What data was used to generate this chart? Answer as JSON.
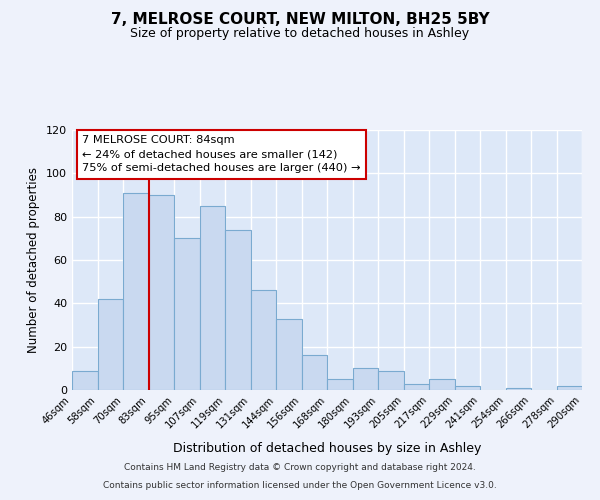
{
  "title": "7, MELROSE COURT, NEW MILTON, BH25 5BY",
  "subtitle": "Size of property relative to detached houses in Ashley",
  "xlabel": "Distribution of detached houses by size in Ashley",
  "ylabel": "Number of detached properties",
  "bin_labels": [
    "46sqm",
    "58sqm",
    "70sqm",
    "83sqm",
    "95sqm",
    "107sqm",
    "119sqm",
    "131sqm",
    "144sqm",
    "156sqm",
    "168sqm",
    "180sqm",
    "193sqm",
    "205sqm",
    "217sqm",
    "229sqm",
    "241sqm",
    "254sqm",
    "266sqm",
    "278sqm",
    "290sqm"
  ],
  "bar_values": [
    9,
    42,
    91,
    90,
    70,
    85,
    74,
    46,
    33,
    16,
    5,
    10,
    9,
    3,
    5,
    2,
    0,
    1,
    0,
    2
  ],
  "bar_color": "#c9d9f0",
  "bar_edge_color": "#7aaad0",
  "ylim": [
    0,
    120
  ],
  "yticks": [
    0,
    20,
    40,
    60,
    80,
    100,
    120
  ],
  "annotation_title": "7 MELROSE COURT: 84sqm",
  "annotation_line1": "← 24% of detached houses are smaller (142)",
  "annotation_line2": "75% of semi-detached houses are larger (440) →",
  "annotation_box_color": "#ffffff",
  "annotation_box_edge": "#cc0000",
  "property_line_x": 3,
  "property_line_color": "#cc0000",
  "footer1": "Contains HM Land Registry data © Crown copyright and database right 2024.",
  "footer2": "Contains public sector information licensed under the Open Government Licence v3.0.",
  "plot_bg_color": "#dde8f8",
  "fig_bg_color": "#eef2fb",
  "footer_bg_color": "#ffffff",
  "grid_color": "#ffffff"
}
